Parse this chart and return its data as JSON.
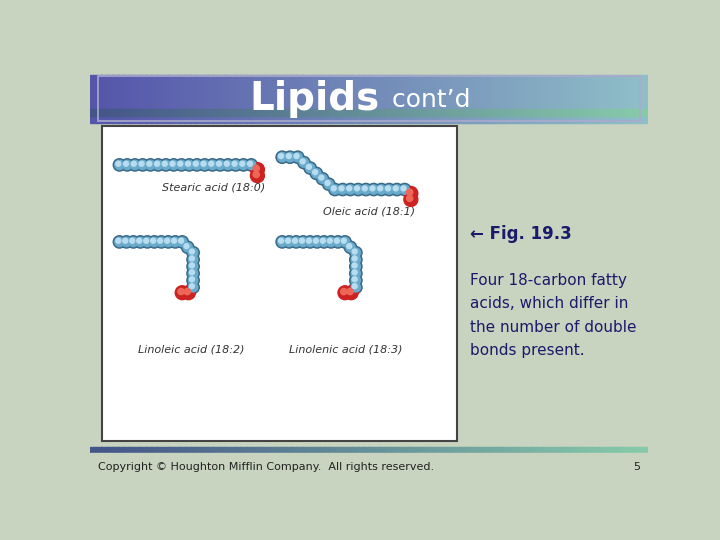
{
  "title_main": "Lipids",
  "title_sub": " cont’d",
  "title_main_fontsize": 28,
  "title_sub_fontsize": 18,
  "fig_label_bold": "← Fig. 19.3",
  "fig_text": "Four 18-carbon fatty\nacids, which differ in\nthe number of double\nbonds present.",
  "fig_label_fontsize": 12,
  "fig_text_fontsize": 11,
  "caption": "Copyright © Houghton Mifflin Company.  All rights reserved.",
  "page_num": "5",
  "caption_fontsize": 8,
  "slide_bg": "#c8d4c0",
  "box_bg": "#ffffff",
  "box_border": "#444444",
  "title_text_color": "#ffffff",
  "fig_label_color": "#1a1a6a",
  "fig_text_color": "#1a1a6a",
  "caption_color": "#222222",
  "label_stearic": "Stearic acid (18:0)",
  "label_oleic": "Oleic acid (18:1)",
  "label_linoleic": "Linoleic acid (18:2)",
  "label_linolenic": "Linolenic acid (18:3)",
  "atom_color_main": "#6aabcc",
  "atom_color_dark": "#3a6a88",
  "atom_color_light": "#b8ddf0",
  "atom_color_red": "#cc2222",
  "atom_color_red2": "#dd5544"
}
